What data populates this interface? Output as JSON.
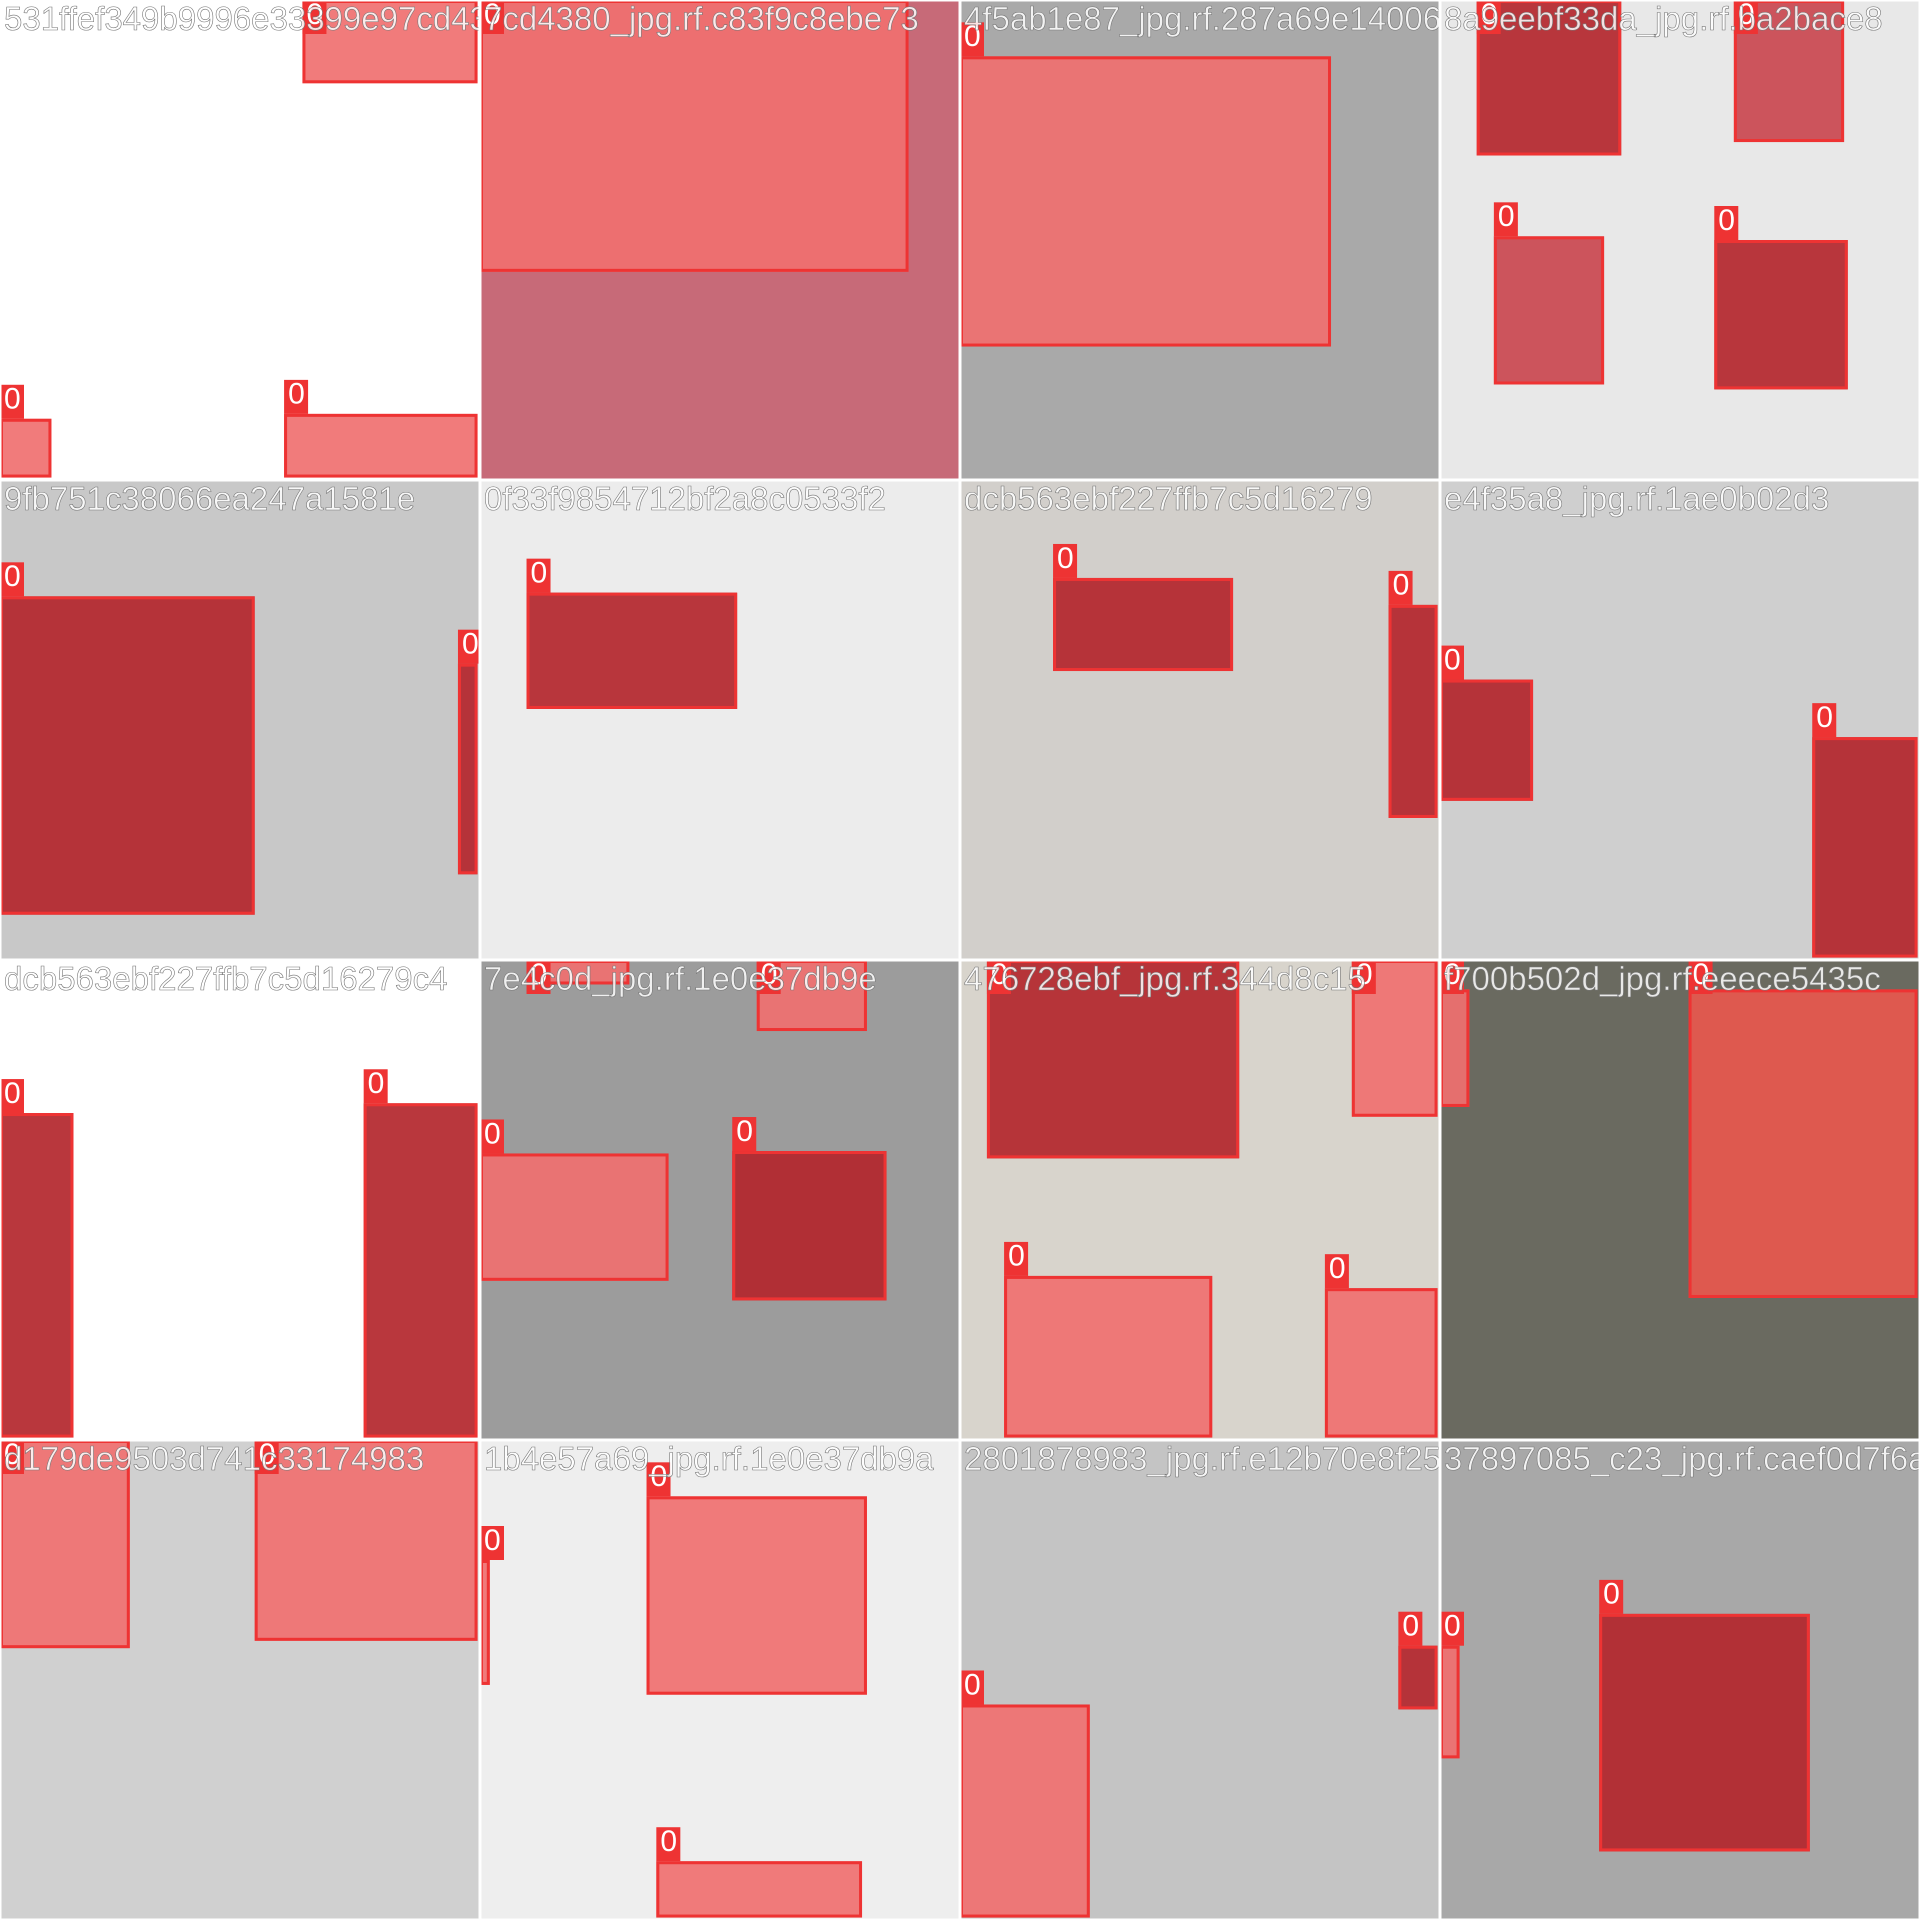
{
  "tiles": [
    {
      "filename": "531ffef349b9996e33399e97cd4380_jpg.rf.c83f9c8ebe73",
      "boxes": [
        {
          "label": "0"
        },
        {
          "label": "0"
        },
        {
          "label": "0"
        }
      ]
    },
    {
      "filename": "7cd4380_jpg.rf.c83f9c8ebe73",
      "boxes": [
        {
          "label": "0"
        }
      ]
    },
    {
      "filename": "4f5ab1e87_jpg.rf.287a69e140068",
      "boxes": [
        {
          "label": "0"
        }
      ]
    },
    {
      "filename": "8a9eebf33da_jpg.rf.ba2bace8",
      "boxes": [
        {
          "label": "0"
        },
        {
          "label": "0"
        },
        {
          "label": "0"
        },
        {
          "label": "0"
        }
      ]
    },
    {
      "filename": "9fb751c38066ea247a1581e",
      "boxes": [
        {
          "label": "0"
        },
        {
          "label": "0"
        }
      ]
    },
    {
      "filename": "0f33f9854712bf2a8c0533f2",
      "boxes": [
        {
          "label": "0"
        }
      ]
    },
    {
      "filename": "dcb563ebf227ffb7c5d16279",
      "boxes": [
        {
          "label": "0"
        },
        {
          "label": "0"
        }
      ]
    },
    {
      "filename": "e4f35a8_jpg.rf.1ae0b02d3",
      "boxes": [
        {
          "label": "0"
        },
        {
          "label": "0"
        }
      ]
    },
    {
      "filename": "dcb563ebf227ffb7c5d16279c4",
      "boxes": [
        {
          "label": "0"
        },
        {
          "label": "0"
        }
      ]
    },
    {
      "filename": "7e4c0d_jpg.rf.1e0e37db9e",
      "boxes": [
        {
          "label": "0"
        },
        {
          "label": "0"
        },
        {
          "label": "0"
        },
        {
          "label": "0"
        }
      ]
    },
    {
      "filename": "476728ebf_jpg.rf.344d8c15",
      "boxes": [
        {
          "label": "0"
        },
        {
          "label": "0"
        },
        {
          "label": "0"
        },
        {
          "label": "0"
        }
      ]
    },
    {
      "filename": "f700b502d_jpg.rf.eeece5435c",
      "boxes": [
        {
          "label": "0"
        },
        {
          "label": "0"
        }
      ]
    },
    {
      "filename": "d179de9503d741c33174983",
      "boxes": [
        {
          "label": "0"
        },
        {
          "label": "0"
        }
      ]
    },
    {
      "filename": "1b4e57a69_jpg.rf.1e0e37db9a",
      "boxes": [
        {
          "label": "0"
        },
        {
          "label": "0"
        },
        {
          "label": "0"
        }
      ]
    },
    {
      "filename": "2801878983_jpg.rf.e12b70e8f25",
      "boxes": [
        {
          "label": "0"
        },
        {
          "label": "0"
        }
      ]
    },
    {
      "filename": "37897085_c23_jpg.rf.caef0d7f6a61",
      "boxes": [
        {
          "label": "0"
        },
        {
          "label": "0"
        }
      ]
    }
  ]
}
